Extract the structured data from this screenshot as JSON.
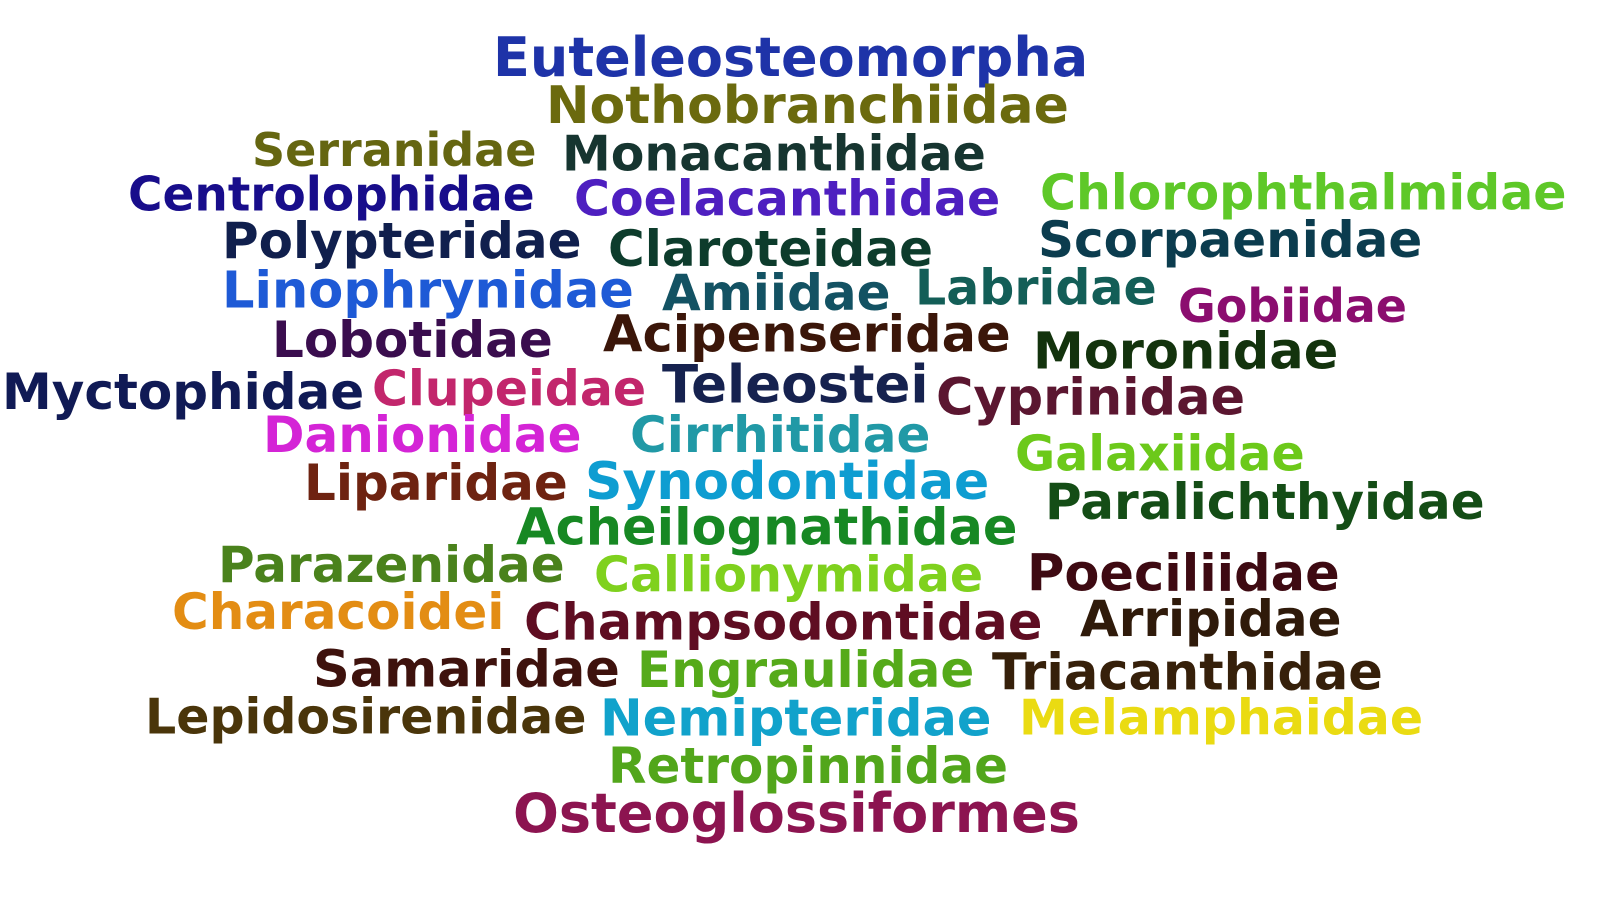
{
  "words": [
    {
      "text": "Euteleosteomorpha",
      "color": "#1e33a8"
    },
    {
      "text": "Nothobranchiidae",
      "color": "#6b6a0e"
    },
    {
      "text": "Serranidae",
      "color": "#656611"
    },
    {
      "text": "Monacanthidae",
      "color": "#163530"
    },
    {
      "text": "Centrolophidae",
      "color": "#180d8b"
    },
    {
      "text": "Coelacanthidae",
      "color": "#4e1fc0"
    },
    {
      "text": "Chlorophthalmidae",
      "color": "#5ec828"
    },
    {
      "text": "Polypteridae",
      "color": "#101f4d"
    },
    {
      "text": "Claroteidae",
      "color": "#0d3c2c"
    },
    {
      "text": "Scorpaenidae",
      "color": "#0b3c4e"
    },
    {
      "text": "Linophrynidae",
      "color": "#1e5ad6"
    },
    {
      "text": "Amiidae",
      "color": "#135263"
    },
    {
      "text": "Labridae",
      "color": "#135e57"
    },
    {
      "text": "Gobiidae",
      "color": "#8b0d6f"
    },
    {
      "text": "Lobotidae",
      "color": "#3a0d4e"
    },
    {
      "text": "Acipenseridae",
      "color": "#3b1609"
    },
    {
      "text": "Moronidae",
      "color": "#13330d"
    },
    {
      "text": "Myctophidae",
      "color": "#101a55"
    },
    {
      "text": "Clupeidae",
      "color": "#c2266c"
    },
    {
      "text": "Teleostei",
      "color": "#16224f"
    },
    {
      "text": "Cyprinidae",
      "color": "#5b1630"
    },
    {
      "text": "Danionidae",
      "color": "#d424d6"
    },
    {
      "text": "Cirrhitidae",
      "color": "#2199a6"
    },
    {
      "text": "Galaxiidae",
      "color": "#6cc91a"
    },
    {
      "text": "Liparidae",
      "color": "#6e2311"
    },
    {
      "text": "Synodontidae",
      "color": "#0e9dd1"
    },
    {
      "text": "Paralichthyidae",
      "color": "#144d16"
    },
    {
      "text": "Acheilognathidae",
      "color": "#178823"
    },
    {
      "text": "Parazenidae",
      "color": "#4a821c"
    },
    {
      "text": "Callionymidae",
      "color": "#7fd11e"
    },
    {
      "text": "Poeciliidae",
      "color": "#3e0a12"
    },
    {
      "text": "Characoidei",
      "color": "#e38d14"
    },
    {
      "text": "Champsodontidae",
      "color": "#5f0d22"
    },
    {
      "text": "Arripidae",
      "color": "#2f1a0a"
    },
    {
      "text": "Samaridae",
      "color": "#3e120d"
    },
    {
      "text": "Engraulidae",
      "color": "#55aa1a"
    },
    {
      "text": "Triacanthidae",
      "color": "#36200a"
    },
    {
      "text": "Lepidosirenidae",
      "color": "#4a350a"
    },
    {
      "text": "Nemipteridae",
      "color": "#11a2cb"
    },
    {
      "text": "Melamphaidae",
      "color": "#eadb12"
    },
    {
      "text": "Retropinnidae",
      "color": "#52a61b"
    },
    {
      "text": "Osteoglossiformes",
      "color": "#8c1450"
    }
  ]
}
